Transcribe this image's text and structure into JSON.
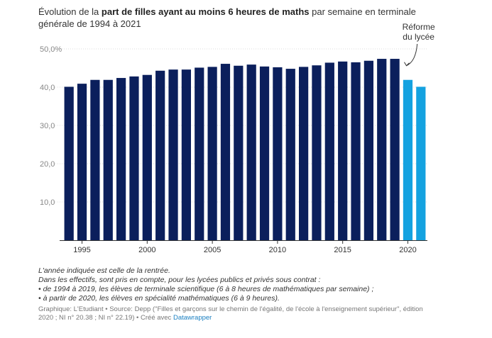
{
  "title": {
    "prefix": "Évolution de la ",
    "bold": "part de filles ayant au moins 6 heures de maths",
    "suffix": " par semaine en terminale générale de 1994 à 2021"
  },
  "annotation": {
    "line1": "Réforme",
    "line2": "du lycée"
  },
  "colors": {
    "before_reform": "#0b1f5c",
    "after_reform": "#14a2e0",
    "grid": "#dddddd",
    "axis": "#333333"
  },
  "chart_data": {
    "type": "bar",
    "x": [
      1994,
      1995,
      1996,
      1997,
      1998,
      1999,
      2000,
      2001,
      2002,
      2003,
      2004,
      2005,
      2006,
      2007,
      2008,
      2009,
      2010,
      2011,
      2012,
      2013,
      2014,
      2015,
      2016,
      2017,
      2018,
      2019,
      2020,
      2021
    ],
    "values": [
      40.1,
      40.9,
      41.9,
      41.9,
      42.4,
      42.8,
      43.2,
      44.3,
      44.6,
      44.6,
      45.1,
      45.3,
      46.1,
      45.6,
      45.9,
      45.4,
      45.2,
      44.8,
      45.3,
      45.7,
      46.4,
      46.7,
      46.5,
      46.9,
      47.4,
      47.4,
      41.9,
      40.1
    ],
    "series_split_year": 2020,
    "ylim": [
      0,
      50
    ],
    "yticks": [
      {
        "value": 10,
        "label": "10,0"
      },
      {
        "value": 20,
        "label": "20,0"
      },
      {
        "value": 30,
        "label": "30,0"
      },
      {
        "value": 40,
        "label": "40,0"
      },
      {
        "value": 50,
        "label": "50,0%"
      }
    ],
    "xticks": [
      {
        "value": 1995,
        "label": "1995"
      },
      {
        "value": 2000,
        "label": "2000"
      },
      {
        "value": 2005,
        "label": "2005"
      },
      {
        "value": 2010,
        "label": "2010"
      },
      {
        "value": 2015,
        "label": "2015"
      },
      {
        "value": 2020,
        "label": "2020"
      }
    ],
    "grid": true
  },
  "notes": [
    "L'année indiquée est celle de la rentrée.",
    "Dans les effectifs, sont pris en compte, pour les lycées publics et privés sous contrat :",
    "• de 1994 à 2019, les élèves de terminale scientifique (6 à 8 heures de mathématiques par semaine) ;",
    "• à partir de 2020, les élèves en spécialité mathématiques (6 à 9 heures)."
  ],
  "credit": {
    "text": "Graphique: L'Etudiant • Source: Depp (\"Filles et garçons sur le chemin de l'égalité, de l'école à l'enseignement supérieur\", édition 2020 ; NI n° 20.38 ; NI n° 22.19) • Créé avec ",
    "link": "Datawrapper"
  }
}
